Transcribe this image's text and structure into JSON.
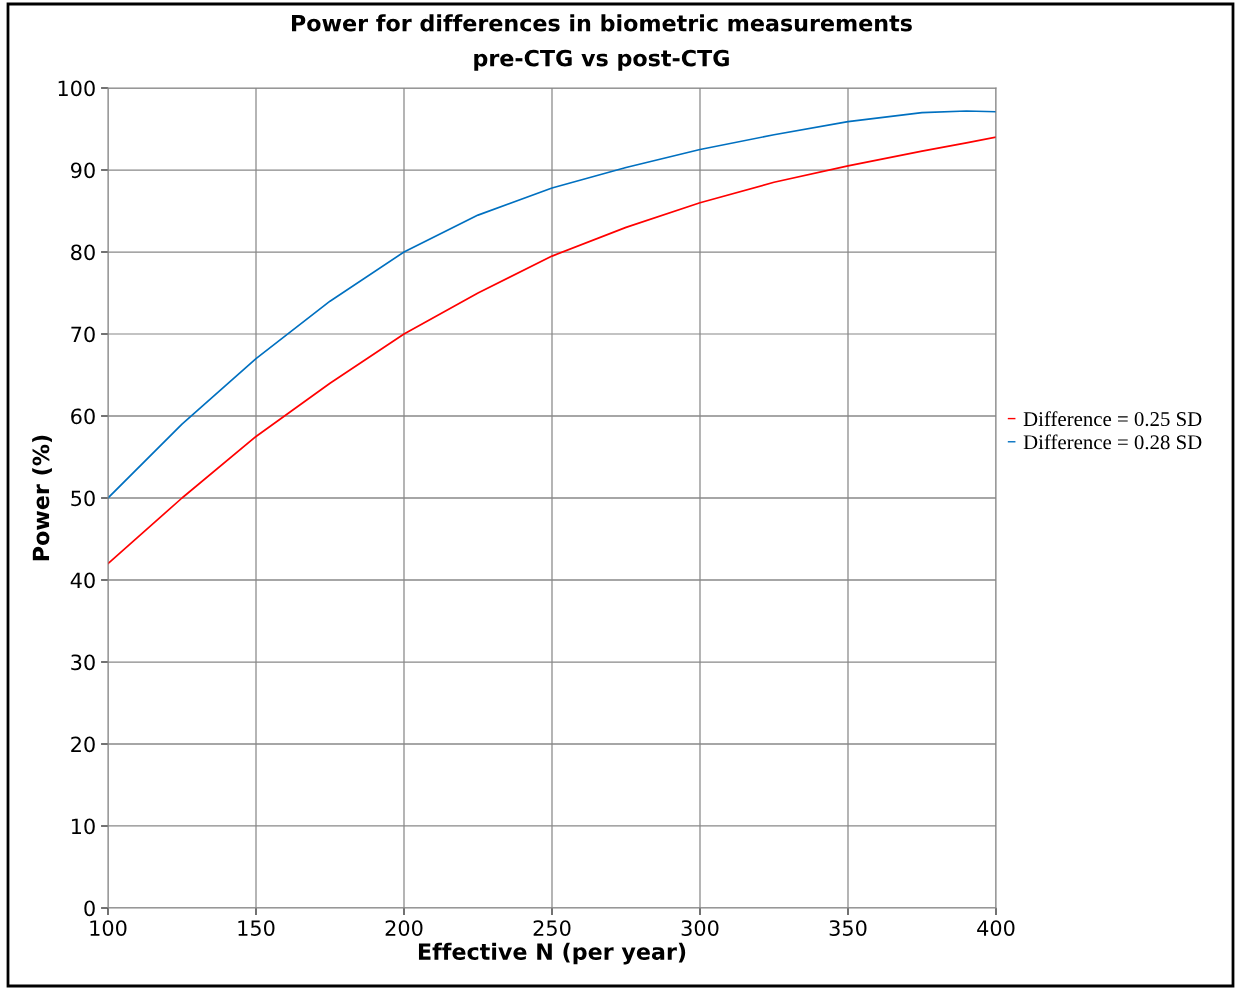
{
  "chart_data": {
    "type": "line",
    "title": "Power for differences in biometric measurements",
    "subtitle": "pre-CTG vs post-CTG",
    "xlabel": "Effective N (per year)",
    "ylabel": "Power (%)",
    "x": [
      100,
      125,
      150,
      175,
      200,
      225,
      250,
      275,
      300,
      325,
      350,
      375,
      390,
      400
    ],
    "series": [
      {
        "name": "Difference = 0.25 SD",
        "color": "#ff0000",
        "values": [
          42,
          50,
          57.5,
          64,
          70,
          75,
          79.5,
          83,
          86,
          88.5,
          90.5,
          92.3,
          93.3,
          94
        ]
      },
      {
        "name": "Difference = 0.28 SD",
        "color": "#0070c0",
        "values": [
          50,
          59,
          67,
          74,
          80,
          84.5,
          87.8,
          90.3,
          92.5,
          94.3,
          95.9,
          97,
          97.2,
          97.1
        ]
      }
    ],
    "xlim": [
      100,
      400
    ],
    "xticks": [
      100,
      150,
      200,
      250,
      300,
      350,
      400
    ],
    "ylim": [
      0,
      100
    ],
    "yticks": [
      0,
      10,
      20,
      30,
      40,
      50,
      60,
      70,
      80,
      90,
      100
    ],
    "grid": true,
    "legend": "right",
    "marker": "none",
    "line_style": "solid"
  }
}
